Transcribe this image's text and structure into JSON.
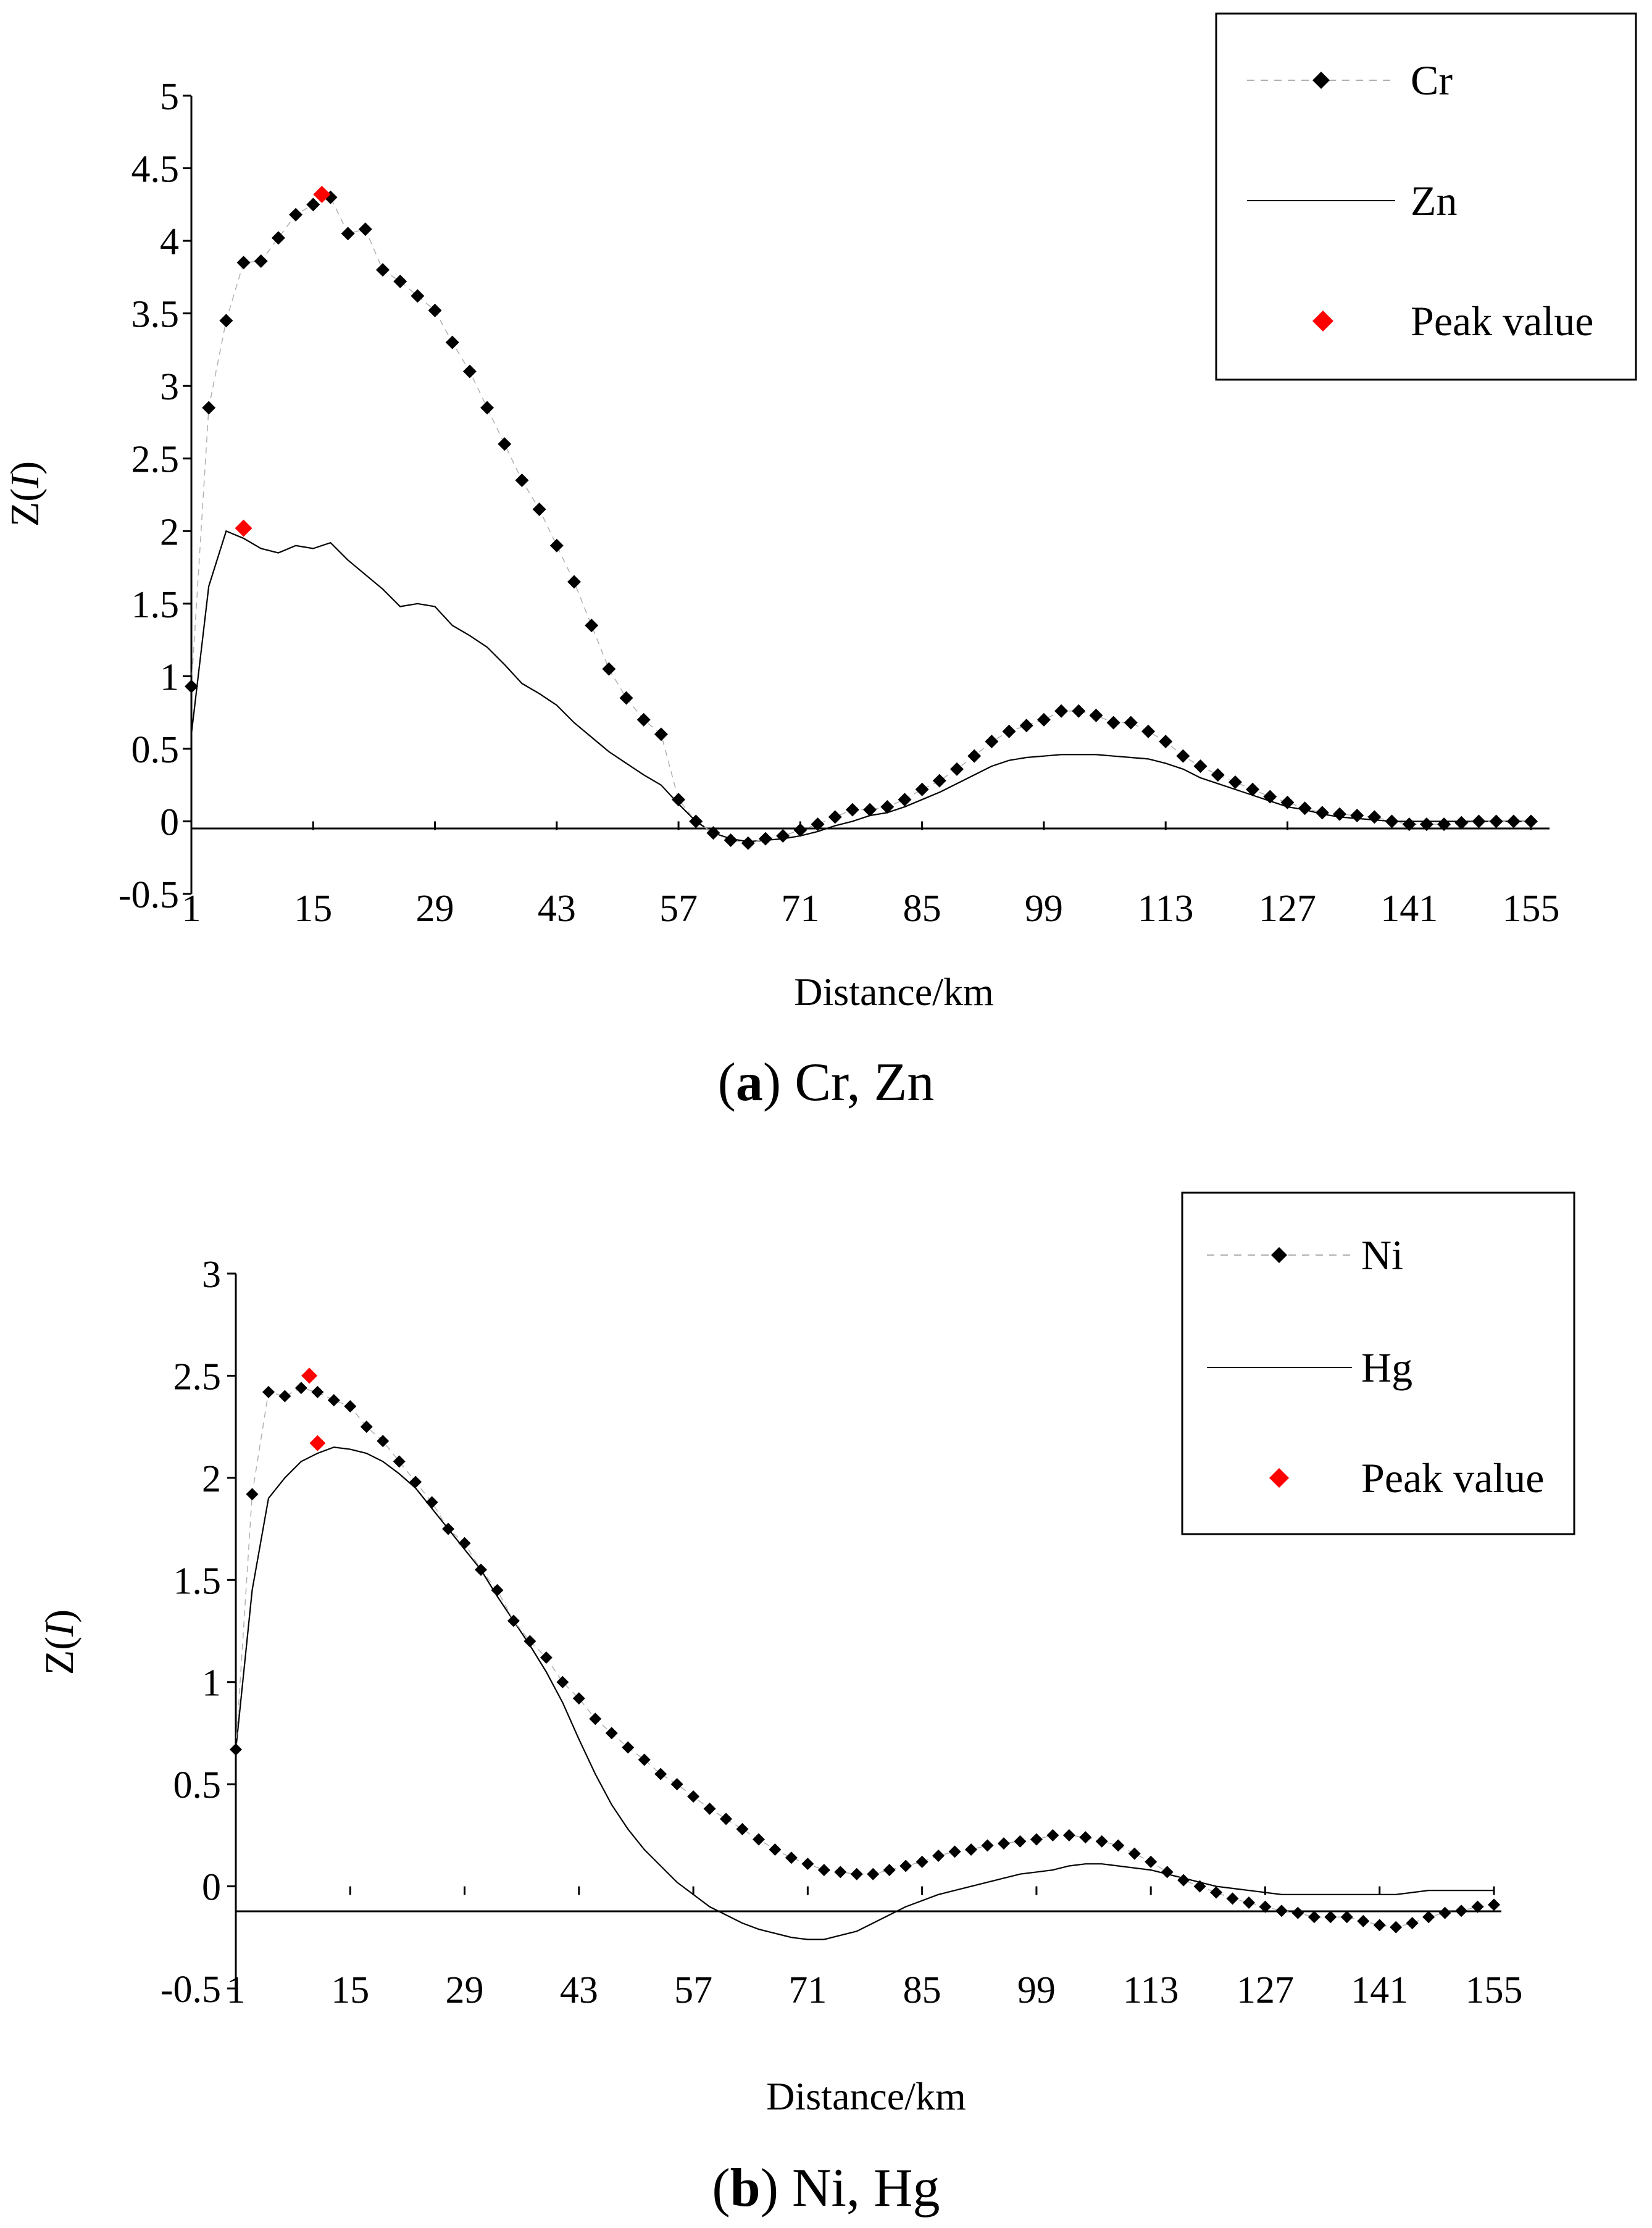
{
  "chart_data": [
    {
      "type": "line",
      "caption_letter": "a",
      "caption_text": "Cr, Zn",
      "xlabel": "Distance/km",
      "ylabel_prefix": "Z(",
      "ylabel_italic": "I",
      "ylabel_suffix": ")",
      "xlim": [
        1,
        155
      ],
      "ylim": [
        -0.5,
        5
      ],
      "x_ticks": [
        "1",
        "15",
        "29",
        "43",
        "57",
        "71",
        "85",
        "99",
        "113",
        "127",
        "141",
        "155"
      ],
      "y_ticks": [
        "5",
        "4.5",
        "4",
        "3.5",
        "3",
        "2.5",
        "2",
        "1.5",
        "1",
        "0.5",
        "0",
        "-0.5"
      ],
      "legend": {
        "series1": "Cr",
        "series2": "Zn",
        "peak": "Peak value",
        "placement": "top-right"
      },
      "colors": {
        "series": "#000000",
        "connector": "#b0b0b0",
        "peak": "#ff0000"
      },
      "series": [
        {
          "name": "Cr",
          "style": "diamond-markers",
          "x": [
            1,
            3,
            5,
            7,
            9,
            11,
            13,
            15,
            17,
            19,
            21,
            23,
            25,
            27,
            29,
            31,
            33,
            35,
            37,
            39,
            41,
            43,
            45,
            47,
            49,
            51,
            53,
            55,
            57,
            59,
            61,
            63,
            65,
            67,
            69,
            71,
            73,
            75,
            77,
            79,
            81,
            83,
            85,
            87,
            89,
            91,
            93,
            95,
            97,
            99,
            101,
            103,
            105,
            107,
            109,
            111,
            113,
            115,
            117,
            119,
            121,
            123,
            125,
            127,
            129,
            131,
            133,
            135,
            137,
            139,
            141,
            143,
            145,
            147,
            149,
            151,
            153,
            155
          ],
          "values": [
            0.93,
            2.85,
            3.45,
            3.85,
            3.86,
            4.02,
            4.18,
            4.25,
            4.3,
            4.05,
            4.08,
            3.8,
            3.72,
            3.62,
            3.52,
            3.3,
            3.1,
            2.85,
            2.6,
            2.35,
            2.15,
            1.9,
            1.65,
            1.35,
            1.05,
            0.85,
            0.7,
            0.6,
            0.15,
            0.0,
            -0.08,
            -0.13,
            -0.15,
            -0.12,
            -0.1,
            -0.06,
            -0.02,
            0.03,
            0.08,
            0.08,
            0.1,
            0.15,
            0.22,
            0.28,
            0.36,
            0.45,
            0.55,
            0.62,
            0.66,
            0.7,
            0.76,
            0.76,
            0.73,
            0.68,
            0.68,
            0.62,
            0.55,
            0.45,
            0.38,
            0.32,
            0.27,
            0.22,
            0.17,
            0.13,
            0.09,
            0.06,
            0.05,
            0.04,
            0.03,
            0.0,
            -0.02,
            -0.02,
            -0.02,
            -0.01,
            0.0,
            0.0,
            0.0,
            0.0
          ]
        },
        {
          "name": "Zn",
          "style": "thin-line",
          "x": [
            1,
            3,
            5,
            7,
            9,
            11,
            13,
            15,
            17,
            19,
            21,
            23,
            25,
            27,
            29,
            31,
            33,
            35,
            37,
            39,
            41,
            43,
            45,
            47,
            49,
            51,
            53,
            55,
            57,
            59,
            61,
            63,
            65,
            67,
            69,
            71,
            73,
            75,
            77,
            79,
            81,
            83,
            85,
            87,
            89,
            91,
            93,
            95,
            97,
            99,
            101,
            103,
            105,
            107,
            109,
            111,
            113,
            115,
            117,
            119,
            121,
            123,
            125,
            127,
            129,
            131,
            133,
            135,
            137,
            139,
            141,
            143,
            145,
            147,
            149,
            151,
            153,
            155
          ],
          "values": [
            0.6,
            1.62,
            2.0,
            1.95,
            1.88,
            1.85,
            1.9,
            1.88,
            1.92,
            1.8,
            1.7,
            1.6,
            1.48,
            1.5,
            1.48,
            1.35,
            1.28,
            1.2,
            1.08,
            0.95,
            0.88,
            0.8,
            0.68,
            0.58,
            0.48,
            0.4,
            0.32,
            0.25,
            0.12,
            0.0,
            -0.08,
            -0.12,
            -0.14,
            -0.13,
            -0.12,
            -0.1,
            -0.07,
            -0.03,
            0.0,
            0.04,
            0.06,
            0.1,
            0.15,
            0.2,
            0.26,
            0.32,
            0.38,
            0.42,
            0.44,
            0.45,
            0.46,
            0.46,
            0.46,
            0.45,
            0.44,
            0.43,
            0.4,
            0.36,
            0.3,
            0.26,
            0.22,
            0.18,
            0.14,
            0.1,
            0.08,
            0.05,
            0.03,
            0.02,
            0.01,
            0.0,
            0.0,
            0.0,
            0.0,
            0.0,
            0.0,
            0.0,
            0.0,
            0.0
          ]
        }
      ],
      "peaks": [
        {
          "x": 16,
          "y": 4.32
        },
        {
          "x": 7,
          "y": 2.02
        }
      ]
    },
    {
      "type": "line",
      "caption_letter": "b",
      "caption_text": "Ni, Hg",
      "xlabel": "Distance/km",
      "ylabel_prefix": "Z(",
      "ylabel_italic": "I",
      "ylabel_suffix": ")",
      "xlim": [
        1,
        155
      ],
      "ylim": [
        -0.5,
        3
      ],
      "x_ticks": [
        "1",
        "15",
        "29",
        "43",
        "57",
        "71",
        "85",
        "99",
        "113",
        "127",
        "141",
        "155"
      ],
      "y_ticks": [
        "3",
        "2.5",
        "2",
        "1.5",
        "1",
        "0.5",
        "0",
        "-0.5"
      ],
      "legend": {
        "series1": "Ni",
        "series2": "Hg",
        "peak": "Peak value",
        "placement": "top-right"
      },
      "colors": {
        "series": "#000000",
        "connector": "#b0b0b0",
        "peak": "#ff0000"
      },
      "series": [
        {
          "name": "Ni",
          "style": "diamond-markers",
          "x": [
            1,
            3,
            5,
            7,
            9,
            11,
            13,
            15,
            17,
            19,
            21,
            23,
            25,
            27,
            29,
            31,
            33,
            35,
            37,
            39,
            41,
            43,
            45,
            47,
            49,
            51,
            53,
            55,
            57,
            59,
            61,
            63,
            65,
            67,
            69,
            71,
            73,
            75,
            77,
            79,
            81,
            83,
            85,
            87,
            89,
            91,
            93,
            95,
            97,
            99,
            101,
            103,
            105,
            107,
            109,
            111,
            113,
            115,
            117,
            119,
            121,
            123,
            125,
            127,
            129,
            131,
            133,
            135,
            137,
            139,
            141,
            143,
            145,
            147,
            149,
            151,
            153,
            155
          ],
          "values": [
            0.67,
            1.92,
            2.42,
            2.4,
            2.44,
            2.42,
            2.38,
            2.35,
            2.25,
            2.18,
            2.08,
            1.98,
            1.88,
            1.75,
            1.68,
            1.55,
            1.45,
            1.3,
            1.2,
            1.12,
            1.0,
            0.92,
            0.82,
            0.75,
            0.68,
            0.62,
            0.55,
            0.5,
            0.44,
            0.38,
            0.33,
            0.28,
            0.23,
            0.18,
            0.14,
            0.11,
            0.08,
            0.07,
            0.06,
            0.06,
            0.08,
            0.1,
            0.12,
            0.15,
            0.17,
            0.18,
            0.2,
            0.21,
            0.22,
            0.23,
            0.25,
            0.25,
            0.24,
            0.22,
            0.2,
            0.16,
            0.12,
            0.07,
            0.03,
            0.0,
            -0.03,
            -0.06,
            -0.08,
            -0.1,
            -0.12,
            -0.13,
            -0.15,
            -0.15,
            -0.15,
            -0.17,
            -0.19,
            -0.2,
            -0.18,
            -0.15,
            -0.13,
            -0.12,
            -0.1,
            -0.09
          ]
        },
        {
          "name": "Hg",
          "style": "thin-line",
          "x": [
            1,
            3,
            5,
            7,
            9,
            11,
            13,
            15,
            17,
            19,
            21,
            23,
            25,
            27,
            29,
            31,
            33,
            35,
            37,
            39,
            41,
            43,
            45,
            47,
            49,
            51,
            53,
            55,
            57,
            59,
            61,
            63,
            65,
            67,
            69,
            71,
            73,
            75,
            77,
            79,
            81,
            83,
            85,
            87,
            89,
            91,
            93,
            95,
            97,
            99,
            101,
            103,
            105,
            107,
            109,
            111,
            113,
            115,
            117,
            119,
            121,
            123,
            125,
            127,
            129,
            131,
            133,
            135,
            137,
            139,
            141,
            143,
            145,
            147,
            149,
            151,
            153,
            155
          ],
          "values": [
            0.67,
            1.45,
            1.9,
            2.0,
            2.08,
            2.12,
            2.15,
            2.14,
            2.12,
            2.08,
            2.02,
            1.95,
            1.85,
            1.75,
            1.65,
            1.55,
            1.42,
            1.3,
            1.18,
            1.05,
            0.9,
            0.72,
            0.55,
            0.4,
            0.28,
            0.18,
            0.1,
            0.02,
            -0.04,
            -0.1,
            -0.14,
            -0.18,
            -0.21,
            -0.23,
            -0.25,
            -0.26,
            -0.26,
            -0.24,
            -0.22,
            -0.18,
            -0.14,
            -0.1,
            -0.07,
            -0.04,
            -0.02,
            0.0,
            0.02,
            0.04,
            0.06,
            0.07,
            0.08,
            0.1,
            0.11,
            0.11,
            0.1,
            0.09,
            0.08,
            0.06,
            0.04,
            0.02,
            0.0,
            -0.01,
            -0.02,
            -0.03,
            -0.04,
            -0.04,
            -0.04,
            -0.04,
            -0.04,
            -0.04,
            -0.04,
            -0.04,
            -0.03,
            -0.02,
            -0.02,
            -0.02,
            -0.02,
            -0.02
          ]
        }
      ],
      "peaks": [
        {
          "x": 10,
          "y": 2.5
        },
        {
          "x": 11,
          "y": 2.17
        }
      ]
    }
  ]
}
